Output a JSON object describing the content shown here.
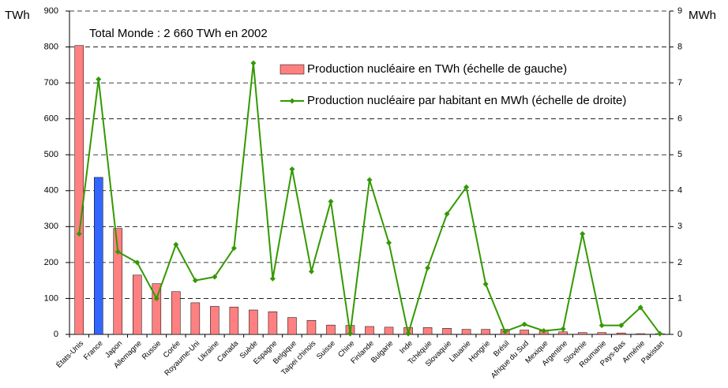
{
  "chart_data": {
    "type": "bar-line",
    "annotation": "Total Monde :  2 660  TWh en 2002",
    "ylabel": "TWh",
    "y2label": "MWh",
    "categories": [
      "États-Unis",
      "France",
      "Japon",
      "Allemagne",
      "Russie",
      "Corée",
      "Royaume-Uni",
      "Ukraine",
      "Canada",
      "Suède",
      "Espagne",
      "Belgique",
      "Taipei chinois",
      "Suisse",
      "Chine",
      "Finlande",
      "Bulgarie",
      "Inde",
      "Tchéquie",
      "Slovaquie",
      "Lituanie",
      "Hongrie",
      "Brésil",
      "Afrique du Sud",
      "Mexique",
      "Argentine",
      "Slovénie",
      "Roumanie",
      "Pays-Bas",
      "Arménie",
      "Pakistan"
    ],
    "series": [
      {
        "name": "Production nucléaire en TWh (échelle de gauche)",
        "type": "bar",
        "color": "#ff8080",
        "colors": [
          "#ff8080",
          "#3366ff",
          "#ff8080",
          "#ff8080",
          "#ff8080",
          "#ff8080",
          "#ff8080",
          "#ff8080",
          "#ff8080",
          "#ff8080",
          "#ff8080",
          "#ff8080",
          "#ff8080",
          "#ff8080",
          "#ff8080",
          "#ff8080",
          "#ff8080",
          "#ff8080",
          "#ff8080",
          "#ff8080",
          "#ff8080",
          "#ff8080",
          "#ff8080",
          "#ff8080",
          "#ff8080",
          "#ff8080",
          "#ff8080",
          "#ff8080",
          "#ff8080",
          "#ff8080",
          "#ff8080"
        ],
        "values": [
          804,
          437,
          295,
          165,
          141,
          119,
          88,
          78,
          76,
          68,
          63,
          47,
          39,
          26,
          25,
          22,
          20,
          19,
          19,
          17,
          14,
          14,
          14,
          12,
          10,
          7,
          5,
          5,
          4,
          2,
          2
        ]
      },
      {
        "name": "Production nucléaire par habitant en MWh (échelle de droite)",
        "type": "line",
        "axis": "y2",
        "color": "#339900",
        "values": [
          2.8,
          7.1,
          2.3,
          2.0,
          1.0,
          2.5,
          1.5,
          1.6,
          2.4,
          7.55,
          1.55,
          4.6,
          1.75,
          3.7,
          0.02,
          4.3,
          2.55,
          0.02,
          1.85,
          3.35,
          4.1,
          1.4,
          0.08,
          0.28,
          0.1,
          0.15,
          2.8,
          0.25,
          0.25,
          0.75,
          0.02
        ]
      }
    ],
    "ylim": [
      0,
      900
    ],
    "yticks": [
      0,
      100,
      200,
      300,
      400,
      500,
      600,
      700,
      800,
      900
    ],
    "y2lim": [
      0,
      9
    ],
    "y2ticks": [
      0,
      1,
      2,
      3,
      4,
      5,
      6,
      7,
      8,
      9
    ],
    "grid": true
  }
}
